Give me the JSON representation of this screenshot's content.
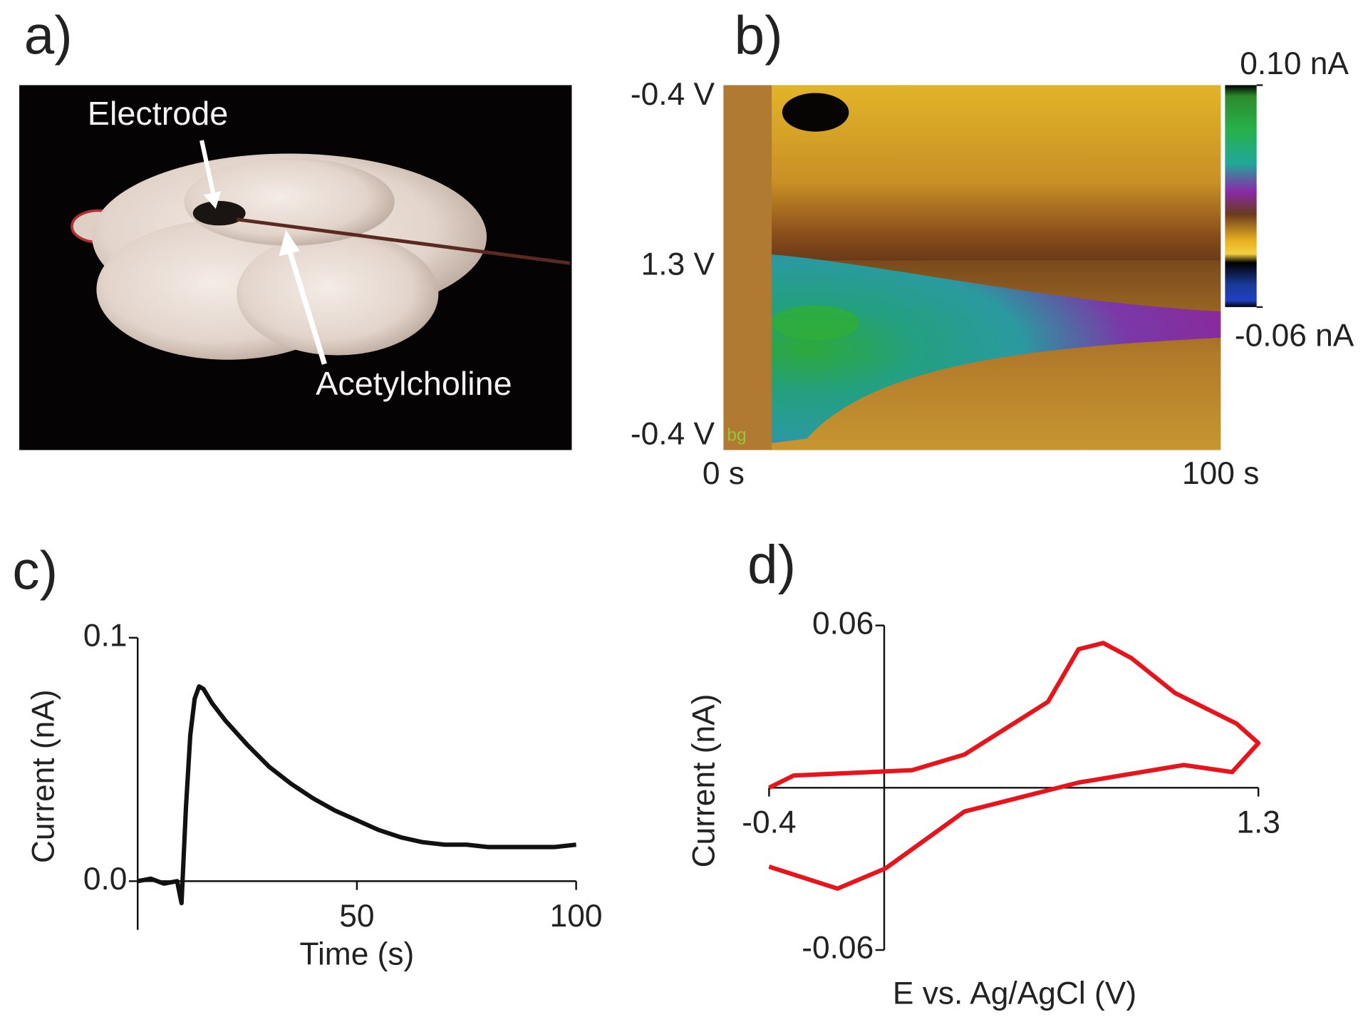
{
  "chart_data": [
    {
      "type": "image",
      "panel_label": "a)",
      "annotations": [
        "Electrode",
        "Acetylcholine"
      ]
    },
    {
      "type": "heatmap",
      "panel_label": "b)",
      "ytick_labels": [
        "-0.4 V",
        "1.3 V",
        "-0.4 V"
      ],
      "xlim": [
        0,
        100
      ],
      "xticks": [
        {
          "value": 0,
          "label": "0 s"
        },
        {
          "value": 100,
          "label": "100 s"
        }
      ],
      "annotation": "bg",
      "colorbar": {
        "lim": [
          -0.06,
          0.1
        ],
        "ticks": [
          {
            "value": 0.1,
            "label": "0.10 nA"
          },
          {
            "value": -0.06,
            "label": "-0.06 nA"
          }
        ]
      }
    },
    {
      "type": "line",
      "panel_label": "c)",
      "xlabel": "Time (s)",
      "ylabel": "Current (nA)",
      "xlim": [
        0,
        100
      ],
      "ylim": [
        -0.02,
        0.1
      ],
      "xticks": [
        50,
        100
      ],
      "yticks": [
        {
          "value": 0,
          "label": "0.0"
        },
        0.1
      ],
      "color": "#111111",
      "x": [
        0,
        3,
        6,
        9,
        10,
        11,
        12,
        13,
        14,
        15,
        17,
        20,
        25,
        30,
        35,
        40,
        45,
        50,
        55,
        60,
        65,
        70,
        75,
        80,
        85,
        90,
        95,
        100
      ],
      "y": [
        0.0,
        0.001,
        -0.001,
        0.0,
        -0.009,
        0.03,
        0.06,
        0.075,
        0.08,
        0.079,
        0.073,
        0.066,
        0.056,
        0.047,
        0.04,
        0.034,
        0.029,
        0.025,
        0.021,
        0.018,
        0.016,
        0.015,
        0.015,
        0.014,
        0.014,
        0.014,
        0.014,
        0.015
      ]
    },
    {
      "type": "line",
      "panel_label": "d)",
      "xlabel": "E vs. Ag/AgCl (V)",
      "ylabel": "Current (nA)",
      "xlim": [
        -0.4,
        1.3
      ],
      "ylim": [
        -0.06,
        0.06
      ],
      "xticks": [
        -0.4,
        1.3
      ],
      "yticks": [
        -0.06,
        0.06
      ],
      "color": "#e8141c",
      "x": [
        -0.4,
        -0.315,
        0.097,
        0.279,
        0.569,
        0.675,
        0.761,
        0.858,
        1.011,
        1.224,
        1.3,
        1.209,
        1.041,
        0.675,
        0.279,
        0.005,
        -0.162,
        -0.4
      ],
      "y": [
        0.0,
        0.0045,
        0.0065,
        0.0123,
        0.0318,
        0.0512,
        0.0535,
        0.048,
        0.035,
        0.0237,
        0.0165,
        0.0058,
        0.0084,
        0.0019,
        -0.0088,
        -0.0298,
        -0.0373,
        -0.0292
      ]
    }
  ]
}
